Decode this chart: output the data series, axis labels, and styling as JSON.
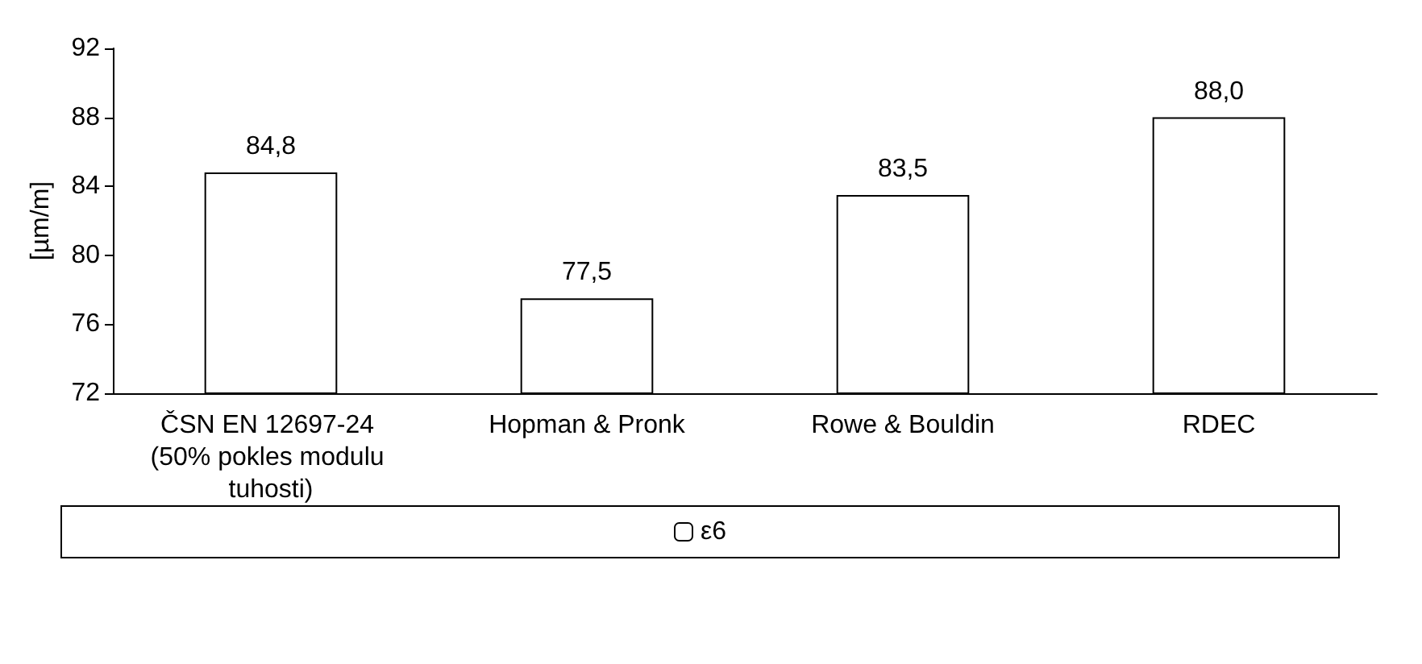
{
  "chart_data": {
    "type": "bar",
    "ylabel": "[µm/m]",
    "categories": [
      "ČSN EN 12697-24 (50% pokles modulu tuhosti)",
      "Hopman & Pronk",
      "Rowe & Bouldin",
      "RDEC"
    ],
    "series": [
      {
        "name": "ε6",
        "color": "#ffffff",
        "values": [
          84.8,
          77.5,
          83.5,
          88.0
        ],
        "value_labels": [
          "84,8",
          "77,5",
          "83,5",
          "88,0"
        ]
      }
    ],
    "ylim": [
      72,
      92
    ],
    "yticks": [
      72,
      76,
      80,
      84,
      88,
      92
    ],
    "grid": false,
    "legend": "bottom"
  }
}
